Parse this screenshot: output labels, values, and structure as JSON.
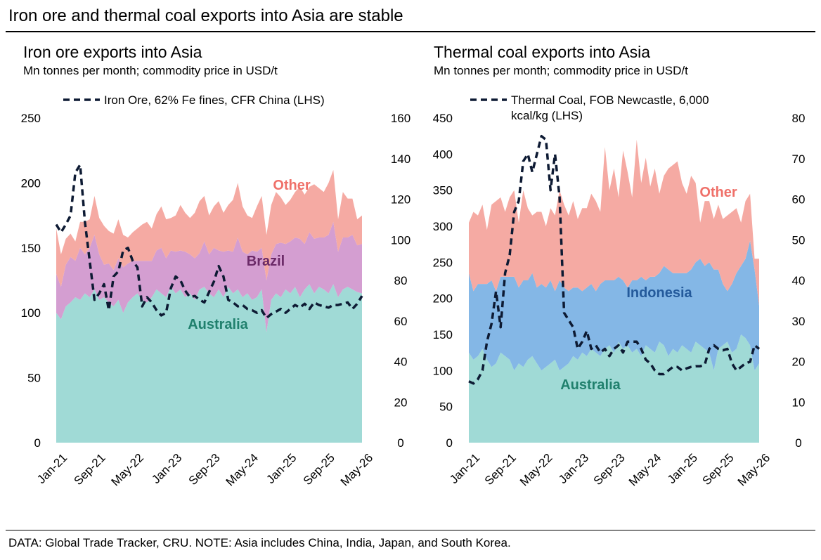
{
  "page_title": "Iron ore and thermal coal exports into Asia are stable",
  "footnote": "DATA: Global Trade Tracker, CRU. NOTE: Asia includes China, India, Japan, and South Korea.",
  "colors": {
    "australia": "#a0dad6",
    "brazil": "#d49ed1",
    "indonesia": "#84b7e6",
    "other": "#f5aaa3",
    "price_line": "#0d1a33",
    "label_australia": "#20806d",
    "label_brazil": "#6b2a68",
    "label_indonesia": "#245a9b",
    "label_other": "#ef7069"
  },
  "chart_data": [
    {
      "type": "area",
      "stacked": true,
      "title": "Iron ore exports into Asia",
      "subtitle": "Mn tonnes per month; commodity price in USD/t",
      "x_tick_labels": [
        "Jan-21",
        "Sep-21",
        "May-22",
        "Jan-23",
        "Sep-23",
        "May-24",
        "Jan-25",
        "Sep-25",
        "May-26"
      ],
      "x_range": [
        "Jan-21",
        "May-26"
      ],
      "y_left": {
        "range": [
          0,
          250
        ],
        "ticks": [
          "0",
          "50",
          "100",
          "150",
          "200",
          "250"
        ]
      },
      "y_right": {
        "range": [
          0,
          160
        ],
        "ticks": [
          "0",
          "20",
          "40",
          "60",
          "80",
          "100",
          "120",
          "140",
          "160"
        ]
      },
      "legend": {
        "entries": [
          "Iron Ore, 62% Fe fines, CFR China (LHS)"
        ],
        "position": "top"
      },
      "area_labels": [
        "Other",
        "Brazil",
        "Australia"
      ],
      "area_series": [
        {
          "name": "Australia",
          "values": [
            100,
            95,
            105,
            108,
            112,
            110,
            115,
            112,
            118,
            110,
            112,
            108,
            105,
            110,
            100,
            108,
            112,
            115,
            110,
            108,
            112,
            118,
            115,
            112,
            120,
            115,
            118,
            112,
            115,
            110,
            118,
            120,
            115,
            112,
            118,
            112,
            120,
            115,
            118,
            112,
            115,
            110,
            112,
            118,
            85,
            110,
            115,
            112,
            118,
            115,
            120,
            112,
            118,
            122,
            115,
            120,
            118,
            115,
            122,
            112,
            118,
            120,
            118,
            116,
            115
          ]
        },
        {
          "name": "Brazil",
          "values": [
            30,
            25,
            32,
            35,
            28,
            40,
            30,
            38,
            42,
            35,
            25,
            30,
            28,
            32,
            35,
            30,
            28,
            25,
            30,
            32,
            28,
            30,
            35,
            30,
            28,
            32,
            30,
            35,
            30,
            32,
            28,
            35,
            30,
            38,
            30,
            35,
            28,
            32,
            40,
            35,
            30,
            38,
            35,
            32,
            40,
            35,
            38,
            42,
            35,
            40,
            38,
            45,
            35,
            40,
            42,
            38,
            40,
            45,
            48,
            35,
            40,
            38,
            42,
            36,
            38
          ]
        },
        {
          "name": "Other",
          "values": [
            35,
            25,
            20,
            18,
            15,
            20,
            25,
            22,
            30,
            28,
            30,
            25,
            28,
            30,
            25,
            20,
            22,
            25,
            28,
            30,
            25,
            28,
            32,
            30,
            25,
            28,
            35,
            30,
            28,
            35,
            40,
            35,
            30,
            32,
            38,
            30,
            35,
            40,
            42,
            35,
            30,
            25,
            35,
            40,
            35,
            38,
            40,
            35,
            30,
            32,
            35,
            40,
            38,
            35,
            42,
            38,
            35,
            40,
            40,
            25,
            35,
            30,
            28,
            20,
            22
          ]
        }
      ],
      "line_series": {
        "name": "Iron Ore, 62% Fe fines, CFR China (LHS)",
        "axis": "left",
        "values": [
          168,
          162,
          168,
          175,
          208,
          214,
          170,
          140,
          110,
          115,
          122,
          102,
          128,
          132,
          148,
          150,
          140,
          135,
          105,
          112,
          108,
          102,
          98,
          100,
          119,
          128,
          125,
          117,
          112,
          113,
          110,
          108,
          116,
          124,
          136,
          128,
          110,
          108,
          105,
          106,
          103,
          102,
          100,
          102,
          96,
          99,
          101,
          103,
          100,
          103,
          106,
          104,
          107,
          103,
          108,
          106,
          105,
          104,
          106,
          106,
          107,
          108,
          103,
          107,
          113
        ]
      }
    },
    {
      "type": "area",
      "stacked": true,
      "title": "Thermal coal exports into Asia",
      "subtitle": "Mn tonnes per month; commodity price in USD/t",
      "x_tick_labels": [
        "Jan-21",
        "Sep-21",
        "May-22",
        "Jan-23",
        "Sep-23",
        "May-24",
        "Jan-25",
        "Sep-25",
        "May-26"
      ],
      "x_range": [
        "Jan-21",
        "May-26"
      ],
      "y_left": {
        "range": [
          0,
          450
        ],
        "ticks": [
          "0",
          "50",
          "100",
          "150",
          "200",
          "250",
          "300",
          "350",
          "400",
          "450"
        ]
      },
      "y_right": {
        "range": [
          0,
          80
        ],
        "ticks": [
          "0",
          "10",
          "20",
          "30",
          "40",
          "50",
          "60",
          "70",
          "80"
        ]
      },
      "legend": {
        "entries": [
          "Thermal Coal, FOB Newcastle, 6,000 kcal/kg (LHS)"
        ],
        "position": "top"
      },
      "area_labels": [
        "Other",
        "Indonesia",
        "Australia"
      ],
      "area_series": [
        {
          "name": "Australia",
          "values": [
            125,
            115,
            120,
            130,
            115,
            105,
            110,
            125,
            120,
            115,
            100,
            110,
            105,
            115,
            120,
            110,
            100,
            105,
            110,
            115,
            100,
            105,
            110,
            120,
            115,
            125,
            120,
            130,
            125,
            120,
            130,
            135,
            125,
            140,
            130,
            135,
            125,
            130,
            120,
            135,
            130,
            125,
            140,
            135,
            120,
            130,
            125,
            135,
            130,
            125,
            140,
            135,
            130,
            125,
            100,
            130,
            135,
            140,
            125,
            130,
            150,
            145,
            135,
            100,
            110
          ]
        },
        {
          "name": "Indonesia",
          "values": [
            110,
            95,
            100,
            90,
            105,
            120,
            100,
            105,
            110,
            115,
            130,
            105,
            120,
            110,
            115,
            105,
            120,
            110,
            115,
            95,
            125,
            110,
            100,
            95,
            100,
            85,
            95,
            90,
            85,
            100,
            95,
            90,
            100,
            90,
            95,
            80,
            100,
            95,
            110,
            90,
            100,
            105,
            95,
            110,
            120,
            105,
            110,
            100,
            105,
            115,
            110,
            120,
            115,
            125,
            140,
            110,
            85,
            70,
            95,
            105,
            95,
            110,
            145,
            140,
            80
          ]
        },
        {
          "name": "Other",
          "values": [
            70,
            110,
            95,
            110,
            75,
            105,
            125,
            110,
            90,
            110,
            120,
            90,
            125,
            100,
            80,
            105,
            100,
            85,
            100,
            105,
            125,
            115,
            105,
            120,
            95,
            115,
            110,
            125,
            125,
            100,
            185,
            125,
            155,
            110,
            180,
            160,
            115,
            195,
            130,
            170,
            125,
            150,
            110,
            125,
            140,
            150,
            155,
            125,
            110,
            130,
            110,
            50,
            90,
            85,
            70,
            90,
            90,
            105,
            100,
            90,
            60,
            80,
            65,
            15,
            65
          ]
        }
      ],
      "line_series": {
        "name": "Thermal Coal, FOB Newcastle, 6,000 kcal/kg (LHS)",
        "axis": "left",
        "values": [
          85,
          82,
          88,
          100,
          140,
          165,
          210,
          160,
          235,
          260,
          320,
          335,
          390,
          400,
          375,
          400,
          425,
          420,
          350,
          400,
          340,
          180,
          170,
          160,
          130,
          140,
          155,
          130,
          135,
          125,
          130,
          120,
          130,
          135,
          125,
          140,
          140,
          140,
          130,
          115,
          110,
          100,
          95,
          95,
          100,
          105,
          105,
          100,
          103,
          105,
          106,
          106,
          108,
          130,
          135,
          130,
          128,
          130,
          110,
          100,
          105,
          110,
          112,
          135,
          130
        ]
      }
    }
  ]
}
